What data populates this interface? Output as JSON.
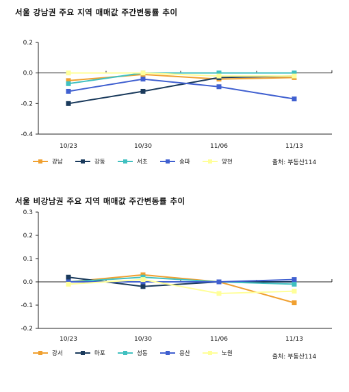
{
  "chart_data": [
    {
      "type": "line",
      "title": "서울 강남권 주요 지역 매매값 주간변동률 추이",
      "categories": [
        "10/23",
        "10/30",
        "11/06",
        "11/13"
      ],
      "yticks": [
        "0.2",
        "0.0",
        "-0.2",
        "-0.4"
      ],
      "ylim": [
        -0.4,
        0.2
      ],
      "source": "출처: 부동산114",
      "legend_position": "bottom-left",
      "series": [
        {
          "name": "강남",
          "color": "#f0a030",
          "values": [
            -0.05,
            -0.01,
            -0.04,
            -0.03
          ]
        },
        {
          "name": "강동",
          "color": "#1a3a5c",
          "values": [
            -0.2,
            -0.12,
            -0.03,
            -0.02
          ]
        },
        {
          "name": "서초",
          "color": "#40c0c0",
          "values": [
            -0.07,
            0.0,
            0.0,
            0.0
          ]
        },
        {
          "name": "송파",
          "color": "#4060d0",
          "values": [
            -0.12,
            -0.04,
            -0.09,
            -0.17
          ]
        },
        {
          "name": "양천",
          "color": "#ffff99",
          "values": [
            0.0,
            0.0,
            -0.02,
            -0.02
          ]
        }
      ]
    },
    {
      "type": "line",
      "title": "서울 비강남권 주요 지역 매매값 주간변동률 추이",
      "categories": [
        "10/23",
        "10/30",
        "11/06",
        "11/13"
      ],
      "yticks": [
        "0.3",
        "0.2",
        "0.1",
        "0.0",
        "-0.1",
        "-0.2"
      ],
      "ylim": [
        -0.2,
        0.3
      ],
      "source": "출처: 부동산114",
      "legend_position": "bottom-left",
      "series": [
        {
          "name": "강서",
          "color": "#f0a030",
          "values": [
            0.0,
            0.03,
            0.0,
            -0.09
          ]
        },
        {
          "name": "마포",
          "color": "#1a3a5c",
          "values": [
            0.02,
            -0.02,
            0.0,
            0.0
          ]
        },
        {
          "name": "성동",
          "color": "#40c0c0",
          "values": [
            0.0,
            0.02,
            0.0,
            -0.01
          ]
        },
        {
          "name": "용산",
          "color": "#4060d0",
          "values": [
            0.0,
            0.0,
            0.0,
            0.01
          ]
        },
        {
          "name": "노원",
          "color": "#ffff99",
          "values": [
            -0.01,
            0.01,
            -0.05,
            -0.04
          ]
        }
      ]
    }
  ]
}
